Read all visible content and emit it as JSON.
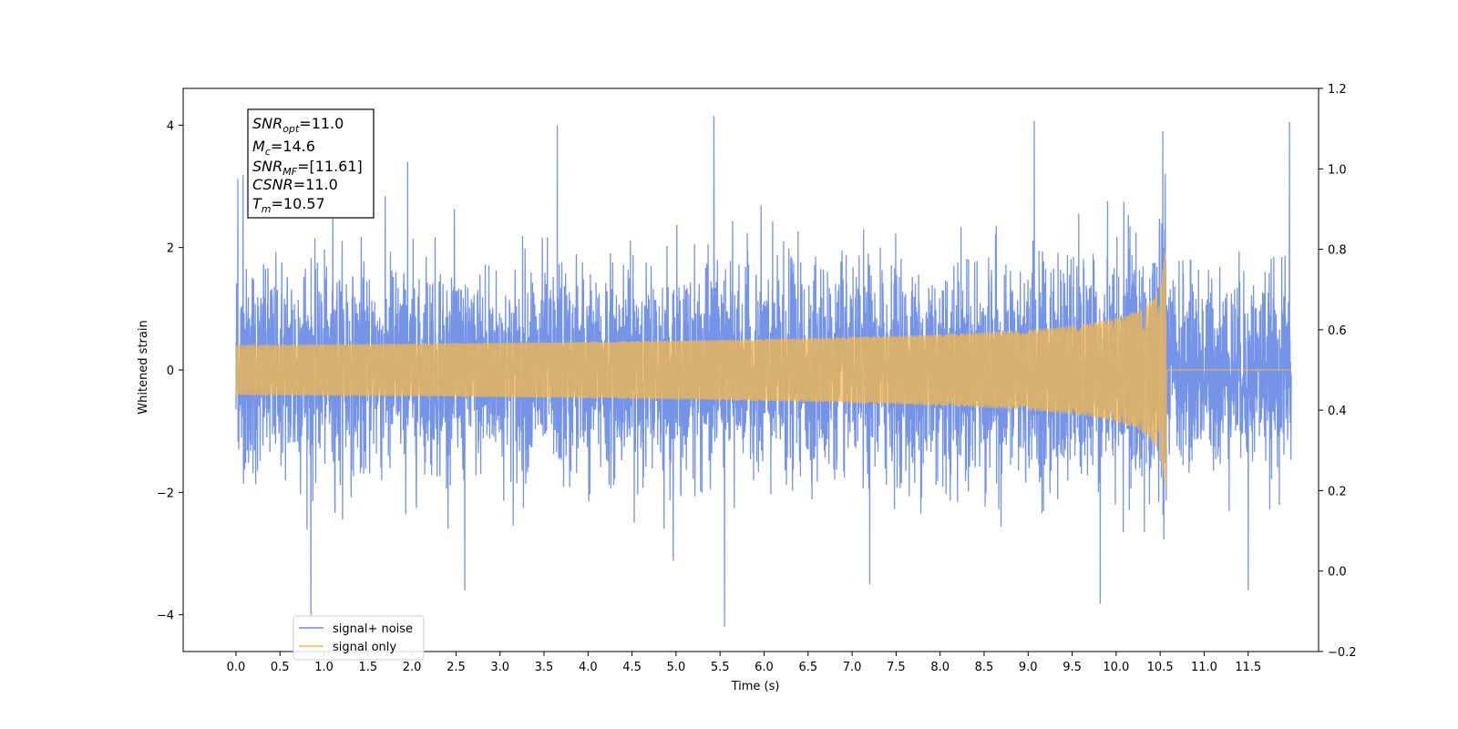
{
  "chart_data": {
    "type": "line",
    "title": "",
    "xlabel": "Time (s)",
    "ylabel": "Whitened strain",
    "xlim": [
      -0.6,
      12.3
    ],
    "ylim": [
      -4.6,
      4.6
    ],
    "y2lim": [
      -0.2,
      1.2
    ],
    "x_ticks": [
      "0.0",
      "0.5",
      "1.0",
      "1.5",
      "2.0",
      "2.5",
      "3.0",
      "3.5",
      "4.0",
      "4.5",
      "5.0",
      "5.5",
      "6.0",
      "6.5",
      "7.0",
      "7.5",
      "8.0",
      "8.5",
      "9.0",
      "9.5",
      "10.0",
      "10.5",
      "11.0",
      "11.5"
    ],
    "y_ticks": [
      "4",
      "2",
      "0",
      "−2",
      "−4"
    ],
    "y2_ticks": [
      "1.2",
      "1.0",
      "0.8",
      "0.6",
      "0.4",
      "0.2",
      "0.0",
      "−0.2"
    ],
    "grid": false,
    "legend_position": "lower-left",
    "series": [
      {
        "name": "signal+ noise",
        "color": "#6f8ee6",
        "x_start": 0.0,
        "x_end": 11.99,
        "noise_amplitude_std": 0.75,
        "peaks": [
          {
            "x": 0.02,
            "y": 3.12
          },
          {
            "x": 0.08,
            "y": 3.18
          },
          {
            "x": 0.85,
            "y": -4.0
          },
          {
            "x": 1.1,
            "y": 3.3
          },
          {
            "x": 1.95,
            "y": 3.4
          },
          {
            "x": 2.6,
            "y": -3.6
          },
          {
            "x": 3.65,
            "y": 4.0
          },
          {
            "x": 5.43,
            "y": 4.15
          },
          {
            "x": 5.55,
            "y": -4.2
          },
          {
            "x": 7.2,
            "y": -3.5
          },
          {
            "x": 9.07,
            "y": 4.07
          },
          {
            "x": 9.82,
            "y": -3.82
          },
          {
            "x": 10.53,
            "y": 3.9
          },
          {
            "x": 11.5,
            "y": -3.6
          },
          {
            "x": 11.97,
            "y": 4.05
          }
        ]
      },
      {
        "name": "signal only",
        "color": "#f5b94a",
        "x_start": 0.0,
        "x_end": 11.99,
        "merger_time": 10.57,
        "peak_amplitude": 1.97
      }
    ],
    "annotation": {
      "lines": [
        {
          "main": "SNR",
          "sub": "opt",
          "rest": "=11.0"
        },
        {
          "main": "M",
          "sub": "c",
          "rest": "=14.6"
        },
        {
          "main": "SNR",
          "sub": "MF",
          "rest": "=[11.61]"
        },
        {
          "main": "CSNR",
          "sub": "",
          "rest": "=11.0"
        },
        {
          "main": "T",
          "sub": "m",
          "rest": "=10.57"
        }
      ]
    }
  }
}
